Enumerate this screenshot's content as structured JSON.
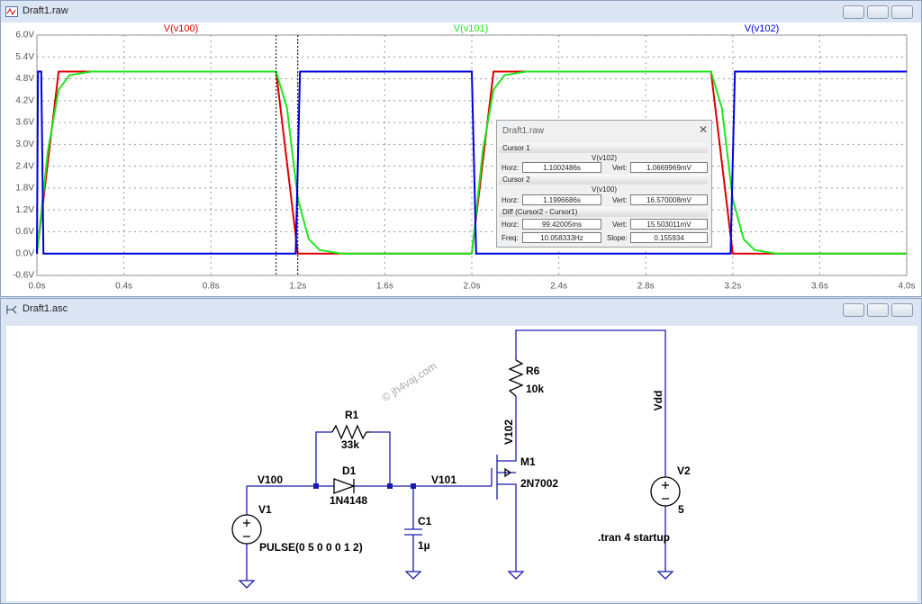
{
  "waveform_window": {
    "title": "Draft1.raw",
    "plot": {
      "type": "line",
      "xlim": [
        0,
        4
      ],
      "ylim": [
        -0.6,
        6
      ],
      "xticks": [
        {
          "value": 0,
          "label": "0.0s"
        },
        {
          "value": 0.4,
          "label": "0.4s"
        },
        {
          "value": 0.8,
          "label": "0.8s"
        },
        {
          "value": 1.2,
          "label": "1.2s"
        },
        {
          "value": 1.6,
          "label": "1.6s"
        },
        {
          "value": 2,
          "label": "2.0s"
        },
        {
          "value": 2.4,
          "label": "2.4s"
        },
        {
          "value": 2.8,
          "label": "2.8s"
        },
        {
          "value": 3.2,
          "label": "3.2s"
        },
        {
          "value": 3.6,
          "label": "3.6s"
        },
        {
          "value": 4,
          "label": "4.0s"
        }
      ],
      "yticks": [
        {
          "value": -0.6,
          "label": "-0.6V"
        },
        {
          "value": 0,
          "label": "0.0V"
        },
        {
          "value": 0.6,
          "label": "0.6V"
        },
        {
          "value": 1.2,
          "label": "1.2V"
        },
        {
          "value": 1.8,
          "label": "1.8V"
        },
        {
          "value": 2.4,
          "label": "2.4V"
        },
        {
          "value": 3,
          "label": "3.0V"
        },
        {
          "value": 3.6,
          "label": "3.6V"
        },
        {
          "value": 4.2,
          "label": "4.2V"
        },
        {
          "value": 4.8,
          "label": "4.8V"
        },
        {
          "value": 5.4,
          "label": "5.4V"
        },
        {
          "value": 6,
          "label": "6.0V"
        }
      ],
      "grid": true,
      "series": [
        {
          "name": "V(v100)",
          "color": "#dc0000",
          "x": [
            0,
            0.1,
            1.1,
            1.2,
            2.0,
            2.1,
            3.1,
            3.2,
            4.0
          ],
          "values": [
            0,
            5,
            5,
            0,
            0,
            5,
            5,
            0,
            0
          ]
        },
        {
          "name": "V(v101)",
          "color": "#1ee61e",
          "x": [
            0,
            0.05,
            0.1,
            0.15,
            0.25,
            1.1,
            1.15,
            1.2,
            1.25,
            1.3,
            1.4,
            2.0,
            2.05,
            2.1,
            2.15,
            2.25,
            3.1,
            3.15,
            3.2,
            3.25,
            3.3,
            3.4,
            4.0
          ],
          "values": [
            0,
            2.8,
            4.5,
            4.9,
            5,
            5,
            4.0,
            1.5,
            0.4,
            0.1,
            0,
            0,
            2.8,
            4.5,
            4.9,
            5,
            5,
            4.0,
            1.5,
            0.4,
            0.1,
            0,
            0
          ]
        },
        {
          "name": "V(v102)",
          "color": "#0000e0",
          "x": [
            0,
            0.005,
            0.02,
            0.03,
            1.19,
            1.21,
            2.0,
            2.02,
            3.19,
            3.21,
            4.0
          ],
          "values": [
            0,
            5,
            5,
            0,
            0,
            5,
            5,
            0,
            0,
            5,
            5
          ]
        }
      ],
      "cursor_x": [
        1.1002486,
        1.1996686
      ]
    },
    "cursor_dialog": {
      "title": "Draft1.raw",
      "cursor1": {
        "header": "Cursor 1",
        "trace": "V(v102)",
        "horz_label": "Horz:",
        "horz": "1.1002486s",
        "vert_label": "Vert:",
        "vert": "1.0669969mV"
      },
      "cursor2": {
        "header": "Cursor 2",
        "trace": "V(v100)",
        "horz_label": "Horz:",
        "horz": "1.1996686s",
        "vert_label": "Vert:",
        "vert": "16.570008mV"
      },
      "diff": {
        "header": "Diff (Cursor2 - Cursor1)",
        "horz_label": "Horz:",
        "horz": "99.42005ms",
        "vert_label": "Vert:",
        "vert": "15.503011mV",
        "freq_label": "Freq:",
        "freq": "10.058333Hz",
        "slope_label": "Slope:",
        "slope": "0.155934"
      }
    }
  },
  "schematic_window": {
    "title": "Draft1.asc",
    "watermark": "© jh4vaj.com",
    "net_labels": [
      "V100",
      "V101",
      "V102",
      "Vdd"
    ],
    "components": [
      {
        "ref": "R1",
        "value": "33k"
      },
      {
        "ref": "D1",
        "value": "1N4148"
      },
      {
        "ref": "C1",
        "value": "1µ"
      },
      {
        "ref": "M1",
        "value": "2N7002"
      },
      {
        "ref": "R6",
        "value": "10k"
      },
      {
        "ref": "V1",
        "value": "PULSE(0 5 0 0 0 1 2)"
      },
      {
        "ref": "V2",
        "value": "5"
      }
    ],
    "directive": ".tran 4 startup"
  }
}
